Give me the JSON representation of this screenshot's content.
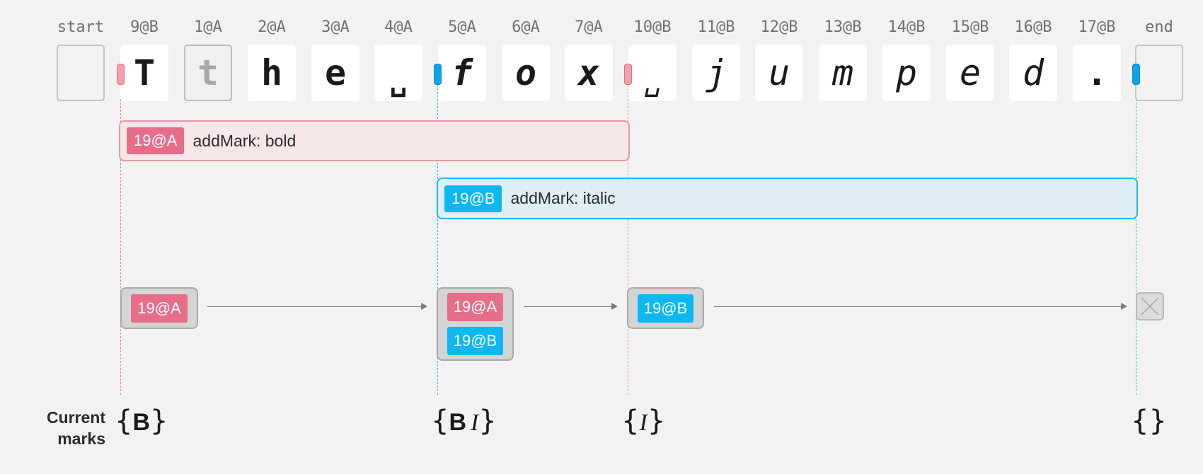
{
  "header_labels": [
    "start",
    "9@B",
    "1@A",
    "2@A",
    "3@A",
    "4@A",
    "5@A",
    "6@A",
    "7@A",
    "10@B",
    "11@B",
    "12@B",
    "13@B",
    "14@B",
    "15@B",
    "16@B",
    "17@B",
    "end"
  ],
  "chars": [
    "",
    "T",
    "t",
    "h",
    "e",
    "␣",
    "f",
    "o",
    "x",
    "␣",
    "j",
    "u",
    "m",
    "p",
    "e",
    "d",
    ".",
    ""
  ],
  "spans": {
    "bold": {
      "tag": "19@A",
      "text": "addMark: bold",
      "color": "#e66e8a"
    },
    "italic": {
      "tag": "19@B",
      "text": "addMark: italic",
      "color": "#0cb7f2"
    }
  },
  "mark_states": [
    {
      "tags": [
        "19@A"
      ]
    },
    {
      "tags": [
        "19@A",
        "19@B"
      ]
    },
    {
      "tags": [
        "19@B"
      ]
    }
  ],
  "current_marks_label": "Current marks",
  "current_marks": [
    {
      "open": "{",
      "b": "B",
      "i": "",
      "close": "}"
    },
    {
      "open": "{",
      "b": "B",
      "i": "I",
      "close": "}"
    },
    {
      "open": "{",
      "b": "",
      "i": "I",
      "close": "}"
    },
    {
      "open": "{",
      "b": "",
      "i": "",
      "close": "}"
    }
  ]
}
